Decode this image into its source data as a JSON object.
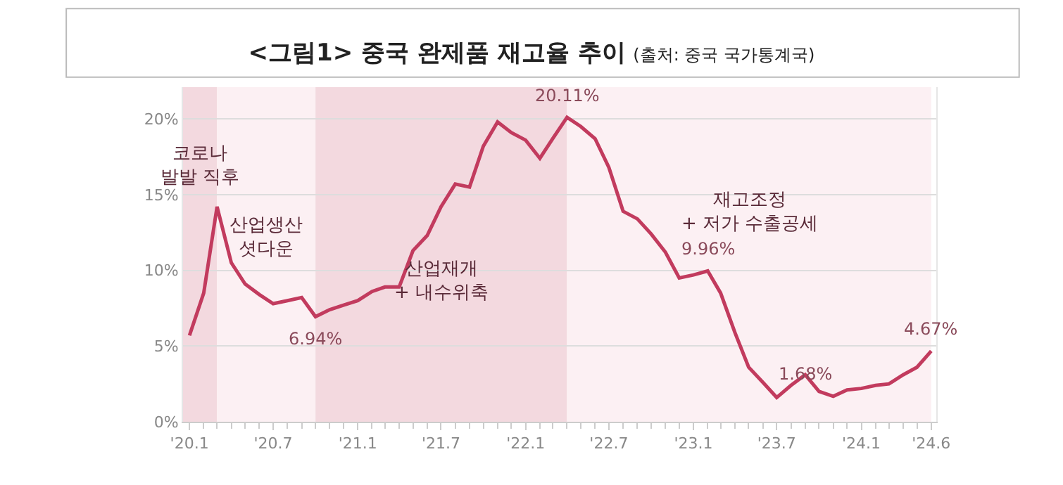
{
  "chart_data": {
    "type": "line",
    "title": "<그림1> 중국 완제품 재고율 추이",
    "subtitle": "(출처: 중국 국가통계국)",
    "x": [
      "2020-01",
      "2020-02",
      "2020-03",
      "2020-04",
      "2020-05",
      "2020-06",
      "2020-07",
      "2020-08",
      "2020-09",
      "2020-10",
      "2020-11",
      "2020-12",
      "2021-01",
      "2021-02",
      "2021-03",
      "2021-04",
      "2021-05",
      "2021-06",
      "2021-07",
      "2021-08",
      "2021-09",
      "2021-10",
      "2021-11",
      "2021-12",
      "2022-01",
      "2022-02",
      "2022-03",
      "2022-04",
      "2022-05",
      "2022-06",
      "2022-07",
      "2022-08",
      "2022-09",
      "2022-10",
      "2022-11",
      "2022-12",
      "2023-01",
      "2023-02",
      "2023-03",
      "2023-04",
      "2023-05",
      "2023-06",
      "2023-07",
      "2023-08",
      "2023-09",
      "2023-10",
      "2023-11",
      "2023-12",
      "2024-01",
      "2024-02",
      "2024-03",
      "2024-04",
      "2024-05",
      "2024-06"
    ],
    "series": [
      {
        "color": "#c23b5e",
        "values": [
          5.7,
          8.5,
          14.2,
          10.5,
          9.1,
          8.4,
          7.8,
          8.0,
          8.2,
          6.94,
          7.4,
          7.7,
          8.0,
          8.6,
          8.9,
          8.9,
          11.3,
          12.3,
          14.2,
          15.7,
          15.5,
          18.2,
          19.8,
          19.1,
          18.6,
          17.4,
          18.7,
          20.11,
          19.5,
          18.7,
          16.8,
          13.9,
          13.4,
          12.4,
          11.2,
          9.5,
          9.7,
          9.96,
          8.5,
          5.9,
          3.6,
          2.6,
          1.6,
          2.4,
          3.1,
          2.0,
          1.68,
          2.1,
          2.2,
          2.4,
          2.5,
          3.1,
          3.6,
          4.67
        ]
      }
    ],
    "annotations": [
      {
        "text": "6.94%",
        "x": "2020-10",
        "y": 6.94
      },
      {
        "text": "20.11%",
        "x": "2022-04",
        "y": 20.11
      },
      {
        "text": "9.96%",
        "x": "2023-02",
        "y": 9.96
      },
      {
        "text": "1.68%",
        "x": "2023-11",
        "y": 1.68
      },
      {
        "text": "4.67%",
        "x": "2024-06",
        "y": 4.67
      }
    ],
    "bands": [
      {
        "axis": "x",
        "from": "2019-12-18",
        "to": "2020-03",
        "label": "코로나\n발발 직후",
        "color": "#f3d9df"
      },
      {
        "axis": "x",
        "from": "2020-03",
        "to": "2020-10",
        "label": "산업생산\n셧다운",
        "color": "#fcf0f3"
      },
      {
        "axis": "x",
        "from": "2020-10",
        "to": "2022-04",
        "label": "산업재개\n+ 내수위축",
        "color": "#f3d9df"
      },
      {
        "axis": "x",
        "from": "2022-04",
        "to": "2024-06",
        "label": "재고조정\n+ 저가 수출공세",
        "color": "#fcf0f3"
      }
    ],
    "xlim": [
      "2019-12-18",
      "2024-06-12"
    ],
    "xticks": [
      {
        "value": "2020-01",
        "label": "'20.1"
      },
      {
        "value": "2020-07",
        "label": "'20.7"
      },
      {
        "value": "2021-01",
        "label": "'21.1"
      },
      {
        "value": "2021-07",
        "label": "'21.7"
      },
      {
        "value": "2022-01",
        "label": "'22.1"
      },
      {
        "value": "2022-07",
        "label": "'22.7"
      },
      {
        "value": "2023-01",
        "label": "'23.1"
      },
      {
        "value": "2023-07",
        "label": "'23.7"
      },
      {
        "value": "2024-01",
        "label": "'24.1"
      },
      {
        "value": "2024-06",
        "label": "'24.6"
      }
    ],
    "ylim": [
      0,
      22.1
    ],
    "yticks": [
      {
        "value": 0,
        "label": "0%"
      },
      {
        "value": 5,
        "label": "5%"
      },
      {
        "value": 10,
        "label": "10%"
      },
      {
        "value": 15,
        "label": "15%"
      },
      {
        "value": 20,
        "label": "20%"
      }
    ],
    "grid": "y",
    "legend": false,
    "marker": "none",
    "line_style": "solid"
  }
}
